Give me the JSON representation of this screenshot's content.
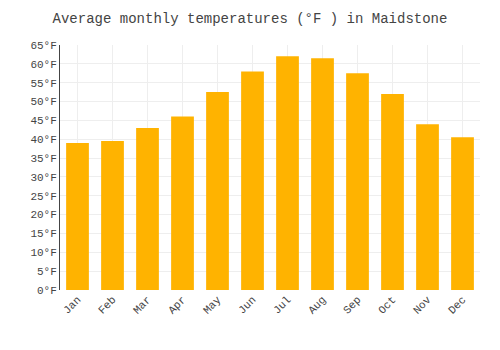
{
  "chart_data": {
    "type": "bar",
    "title": "Average monthly temperatures (°F ) in Maidstone",
    "categories": [
      "Jan",
      "Feb",
      "Mar",
      "Apr",
      "May",
      "Jun",
      "Jul",
      "Aug",
      "Sep",
      "Oct",
      "Nov",
      "Dec"
    ],
    "values": [
      39,
      39.5,
      43,
      46,
      52.5,
      58,
      62,
      61.5,
      57.5,
      52,
      44,
      40.5
    ],
    "color": "#FFB300",
    "ylim": [
      0,
      65
    ],
    "yticks": [
      {
        "value": 0,
        "label": "0°F"
      },
      {
        "value": 5,
        "label": "5°F"
      },
      {
        "value": 10,
        "label": "10°F"
      },
      {
        "value": 15,
        "label": "15°F"
      },
      {
        "value": 20,
        "label": "20°F"
      },
      {
        "value": 25,
        "label": "25°F"
      },
      {
        "value": 30,
        "label": "30°F"
      },
      {
        "value": 35,
        "label": "35°F"
      },
      {
        "value": 40,
        "label": "40°F"
      },
      {
        "value": 45,
        "label": "45°F"
      },
      {
        "value": 50,
        "label": "50°F"
      },
      {
        "value": 55,
        "label": "55°F"
      },
      {
        "value": 60,
        "label": "60°F"
      },
      {
        "value": 65,
        "label": "65°F"
      }
    ],
    "grid": true
  }
}
